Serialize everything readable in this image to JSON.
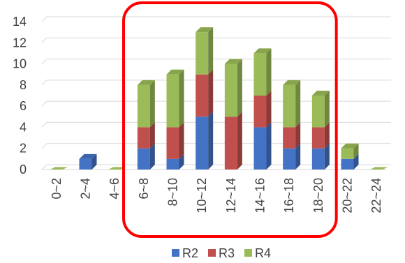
{
  "chart_data": {
    "type": "bar",
    "stacked": true,
    "three_d": true,
    "categories": [
      "0~2",
      "2~4",
      "4~6",
      "6~8",
      "8~10",
      "10~12",
      "12~14",
      "14~16",
      "16~18",
      "18~20",
      "20~22",
      "22~24"
    ],
    "series": [
      {
        "name": "R2",
        "values": [
          0,
          1,
          0,
          2,
          1,
          5,
          0,
          4,
          2,
          2,
          1,
          0
        ],
        "color": "#4472C4"
      },
      {
        "name": "R3",
        "values": [
          0,
          0,
          0,
          2,
          3,
          4,
          5,
          3,
          2,
          2,
          0,
          0
        ],
        "color": "#C0504D"
      },
      {
        "name": "R4",
        "values": [
          0,
          0,
          0,
          4,
          5,
          4,
          5,
          4,
          4,
          3,
          1,
          0
        ],
        "color": "#9BBB59"
      }
    ],
    "ylim": [
      0,
      14
    ],
    "y_ticks": [
      0,
      2,
      4,
      6,
      8,
      10,
      12,
      14
    ],
    "grid": true,
    "legend_position": "bottom",
    "highlight": {
      "shape": "rounded-rectangle",
      "color": "#FF0000",
      "from_category": "6~8",
      "to_category": "18~20"
    }
  }
}
